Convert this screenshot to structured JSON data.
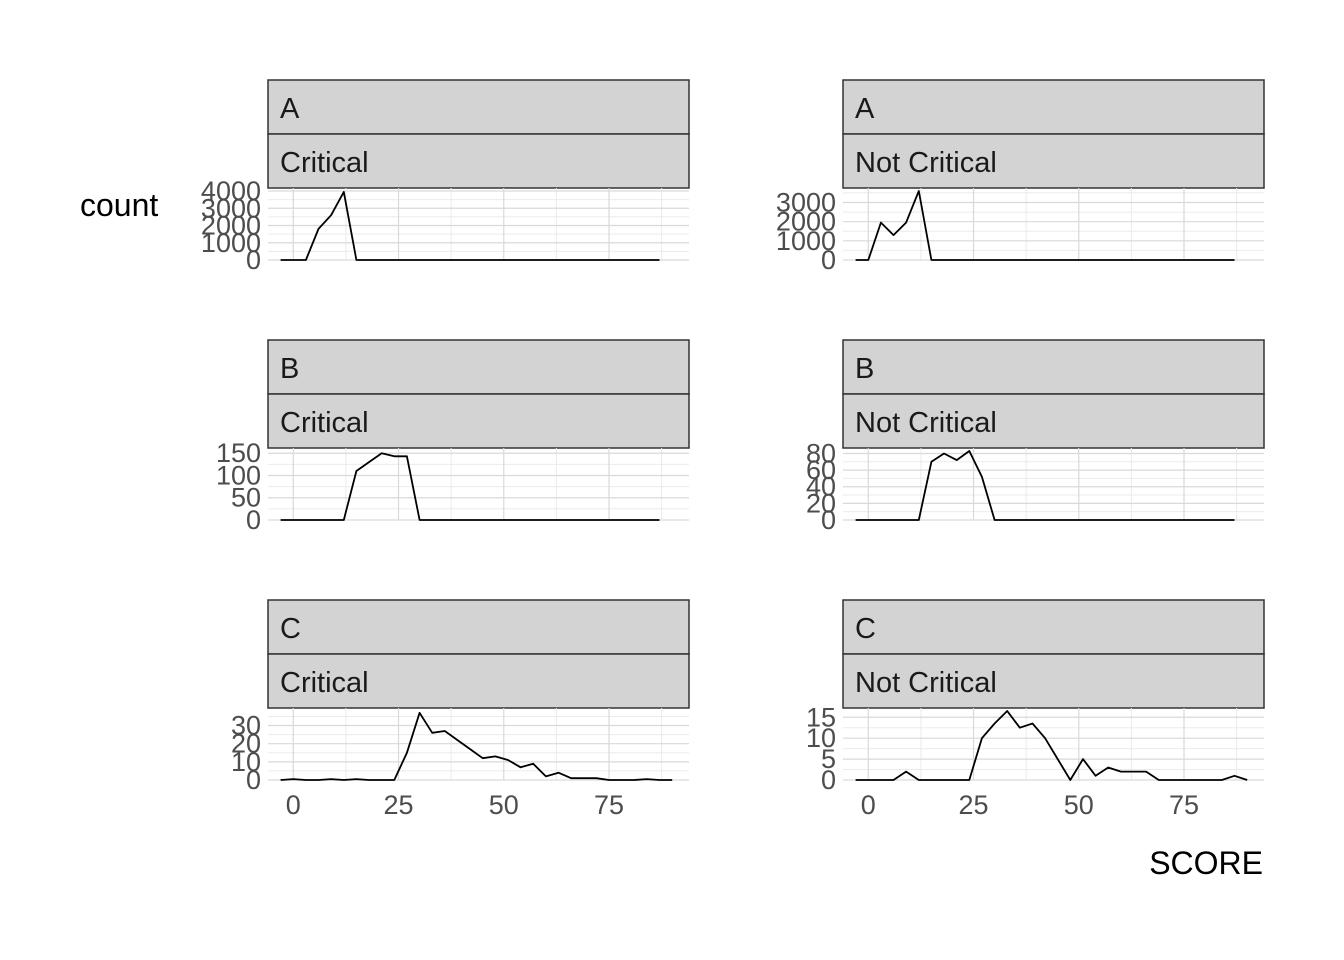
{
  "chart_data": {
    "type": "line",
    "xlabel": "SCORE",
    "ylabel": "count",
    "x_ticks": [
      0,
      25,
      50,
      75
    ],
    "xlim": [
      -6,
      94
    ],
    "x": [
      -3,
      0,
      3,
      6,
      9,
      12,
      15,
      18,
      21,
      24,
      27,
      30,
      33,
      36,
      39,
      42,
      45,
      48,
      51,
      54,
      57,
      60,
      63,
      66,
      69,
      72,
      75,
      78,
      81,
      84,
      87,
      90
    ],
    "panels": [
      {
        "id": "a-critical",
        "row_label": "A",
        "col_label": "Critical",
        "ylim": [
          0,
          4000
        ],
        "y_ticks": [
          0,
          1000,
          2000,
          3000,
          4000
        ],
        "x": [
          -3,
          0,
          3,
          6,
          9,
          12,
          15,
          18,
          87
        ],
        "values": [
          0,
          0,
          0,
          1800,
          2600,
          3950,
          0,
          0,
          0
        ]
      },
      {
        "id": "a-not-critical",
        "row_label": "A",
        "col_label": "Not Critical",
        "ylim": [
          0,
          3600
        ],
        "y_ticks": [
          0,
          1000,
          2000,
          3000
        ],
        "x": [
          -3,
          0,
          3,
          6,
          9,
          12,
          15,
          87
        ],
        "values": [
          0,
          0,
          1950,
          1300,
          1950,
          3600,
          0,
          0
        ]
      },
      {
        "id": "b-critical",
        "row_label": "B",
        "col_label": "Critical",
        "ylim": [
          0,
          155
        ],
        "y_ticks": [
          0,
          50,
          100,
          150
        ],
        "x": [
          -3,
          12,
          15,
          18,
          21,
          24,
          27,
          30,
          87
        ],
        "values": [
          0,
          0,
          110,
          130,
          150,
          143,
          143,
          0,
          0
        ]
      },
      {
        "id": "b-not-critical",
        "row_label": "B",
        "col_label": "Not Critical",
        "ylim": [
          0,
          83
        ],
        "y_ticks": [
          0,
          20,
          40,
          60,
          80
        ],
        "x": [
          -3,
          12,
          15,
          18,
          21,
          24,
          27,
          30,
          87
        ],
        "values": [
          0,
          0,
          70,
          80,
          72,
          83,
          52,
          0,
          0
        ]
      },
      {
        "id": "c-critical",
        "row_label": "C",
        "col_label": "Critical",
        "ylim": [
          0,
          38
        ],
        "y_ticks": [
          0,
          10,
          20,
          30
        ],
        "x": [
          -3,
          0,
          3,
          6,
          9,
          12,
          15,
          18,
          21,
          24,
          27,
          30,
          33,
          36,
          39,
          42,
          45,
          48,
          51,
          54,
          57,
          60,
          63,
          66,
          69,
          72,
          75,
          78,
          81,
          84,
          87,
          90
        ],
        "values": [
          0,
          0.5,
          0,
          0,
          0.5,
          0,
          0.5,
          0,
          0,
          0,
          15,
          37,
          26,
          27,
          22,
          17,
          12,
          13,
          11,
          7,
          9,
          2,
          4,
          1,
          1,
          1,
          0,
          0,
          0,
          0.5,
          0,
          0
        ]
      },
      {
        "id": "c-not-critical",
        "row_label": "C",
        "col_label": "Not Critical",
        "ylim": [
          0,
          16.5
        ],
        "y_ticks": [
          0,
          5,
          10,
          15
        ],
        "x": [
          -3,
          0,
          3,
          6,
          9,
          12,
          15,
          18,
          21,
          24,
          27,
          30,
          33,
          36,
          39,
          42,
          45,
          48,
          51,
          54,
          57,
          60,
          63,
          66,
          69,
          72,
          75,
          78,
          81,
          84,
          87,
          90
        ],
        "values": [
          0,
          0,
          0,
          0,
          2,
          0,
          0,
          0,
          0,
          0,
          10,
          13.5,
          16.5,
          12.5,
          13.5,
          10,
          5,
          0,
          5,
          1,
          3,
          2,
          2,
          2,
          0,
          0,
          0,
          0,
          0,
          0,
          1,
          0
        ]
      }
    ]
  }
}
